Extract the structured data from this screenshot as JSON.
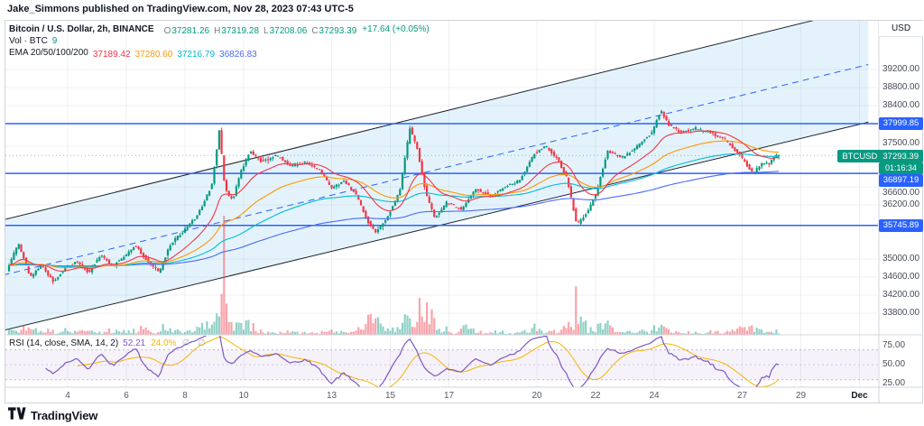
{
  "attribution": {
    "text": "Jake_Simmons published on TradingView.com, Nov 28, 2023 07:43 UTC-5"
  },
  "legend": {
    "title": "Bitcoin / U.S. Dollar, 2h, BINANCE",
    "ohlc": [
      {
        "k": "O",
        "v": "37281.26"
      },
      {
        "k": "H",
        "v": "37319.28"
      },
      {
        "k": "L",
        "v": "37208.06"
      },
      {
        "k": "C",
        "v": "37293.39"
      }
    ],
    "change": "+17.64 (+0.05%)",
    "vol_label": "Vol · BTC",
    "vol_value": "9",
    "ema_label": "EMA 20/50/100/200",
    "ema_values": [
      "37189.42",
      "37280.60",
      "37216.79",
      "36826.83"
    ]
  },
  "rsi_legend": {
    "title": "RSI (14, close, SMA, 14, 2)",
    "value": "52.21",
    "value2": "24.0%",
    "empties": "∅ ∅"
  },
  "price_scale": {
    "currency": "USD",
    "ticks": [
      "39200.00",
      "38800.00",
      "38400.00",
      "37500.00",
      "36600.00",
      "36200.00",
      "35000.00",
      "34600.00",
      "34200.00",
      "33800.00"
    ],
    "level_badges": [
      "37999.85",
      "36897.19",
      "35745.89"
    ],
    "last_badge": {
      "symbol": "BTCUSD",
      "price": "37293.39",
      "countdown": "01:16:34"
    }
  },
  "rsi_scale": {
    "ticks": [
      "75.00",
      "50.00",
      "25.00"
    ]
  },
  "time_axis": {
    "labels": [
      {
        "t": 4,
        "label": "4"
      },
      {
        "t": 6,
        "label": "6"
      },
      {
        "t": 8,
        "label": "8"
      },
      {
        "t": 10,
        "label": "10"
      },
      {
        "t": 13,
        "label": "13"
      },
      {
        "t": 15,
        "label": "15"
      },
      {
        "t": 17,
        "label": "17"
      },
      {
        "t": 20,
        "label": "20"
      },
      {
        "t": 22,
        "label": "22"
      },
      {
        "t": 24,
        "label": "24"
      },
      {
        "t": 27,
        "label": "27"
      },
      {
        "t": 29,
        "label": "29"
      },
      {
        "t": 31,
        "label": "Dec"
      }
    ]
  },
  "footer": {
    "brand": "TradingView"
  },
  "colors": {
    "up": "#089981",
    "down": "#f23645",
    "level_line": "#2962ff",
    "badge_blue": "#2962ff",
    "badge_green": "#089981",
    "channel_line": "#1e222d",
    "channel_fill": "rgba(90,180,230,0.16)",
    "median_line": "#2962ff",
    "ema20": "#f23645",
    "ema50": "#ff9800",
    "ema100": "#00bcd4",
    "ema200": "#4a6cf7",
    "rsi": "#7e57c2",
    "rsi_ma": "#f7b500",
    "grid": "rgba(42,46,57,0.07)",
    "frame": "#d1d4dc"
  },
  "chart_data": {
    "type": "candlestick",
    "symbol": "BTCUSD",
    "name": "Bitcoin / U.S. Dollar",
    "exchange": "BINANCE",
    "interval": "2h",
    "quote_currency": "USD",
    "current_bar": {
      "open": 37281.26,
      "high": 37319.28,
      "low": 37208.06,
      "close": 37293.39,
      "change": 17.64,
      "change_pct": 0.05
    },
    "indicator_values": {
      "ema20": 37189.42,
      "ema50": 37280.6,
      "ema100": 37216.79,
      "ema200": 36826.83,
      "rsi": 52.21,
      "rsi_ma_pct": "24.0%"
    },
    "horizontal_levels": [
      37999.85,
      36897.19,
      35745.89
    ],
    "last_price": 37293.39,
    "bar_countdown": "01:16:34",
    "visible_price_ticks": [
      39200,
      38800,
      38400,
      37500,
      36600,
      36200,
      35000,
      34600,
      34200,
      33800
    ],
    "rsi_ticks": [
      75,
      50,
      25
    ],
    "time_ticks_nov_days": [
      4,
      6,
      8,
      10,
      13,
      15,
      17,
      20,
      22,
      24,
      27,
      29,
      31
    ],
    "time_domain_nov_days": [
      2.0,
      31.2
    ],
    "candle_interval_days": 0.0833333,
    "trend_channel": {
      "upper_start": [
        2,
        35900
      ],
      "upper_end": [
        29.5,
        40300
      ],
      "lower_start": [
        2,
        33450
      ],
      "lower_end": [
        29.5,
        37750
      ],
      "median_dashed": true
    },
    "price_path_anchors": [
      [
        2,
        34750
      ],
      [
        2.4,
        35350
      ],
      [
        2.8,
        34600
      ],
      [
        3.2,
        34850
      ],
      [
        3.6,
        34500
      ],
      [
        4,
        34800
      ],
      [
        4.4,
        34950
      ],
      [
        4.8,
        34700
      ],
      [
        5.2,
        35100
      ],
      [
        5.6,
        34850
      ],
      [
        6,
        35050
      ],
      [
        6.4,
        35300
      ],
      [
        6.8,
        34950
      ],
      [
        7.2,
        34700
      ],
      [
        7.6,
        35350
      ],
      [
        8,
        35600
      ],
      [
        8.5,
        35950
      ],
      [
        9,
        36650
      ],
      [
        9.25,
        37850
      ],
      [
        9.45,
        36550
      ],
      [
        9.7,
        36300
      ],
      [
        10,
        36950
      ],
      [
        10.3,
        37400
      ],
      [
        10.7,
        37150
      ],
      [
        11.2,
        37300
      ],
      [
        11.7,
        37050
      ],
      [
        12.2,
        37150
      ],
      [
        12.7,
        36950
      ],
      [
        13.1,
        36550
      ],
      [
        13.5,
        36750
      ],
      [
        13.9,
        36450
      ],
      [
        14.3,
        35850
      ],
      [
        14.6,
        35600
      ],
      [
        15,
        35950
      ],
      [
        15.4,
        36500
      ],
      [
        15.75,
        37900
      ],
      [
        16,
        37450
      ],
      [
        16.3,
        36450
      ],
      [
        16.6,
        35900
      ],
      [
        17,
        36250
      ],
      [
        17.5,
        36100
      ],
      [
        18,
        36550
      ],
      [
        18.5,
        36400
      ],
      [
        19,
        36600
      ],
      [
        19.5,
        36750
      ],
      [
        20,
        37350
      ],
      [
        20.4,
        37500
      ],
      [
        20.8,
        37200
      ],
      [
        21.1,
        36800
      ],
      [
        21.45,
        35750
      ],
      [
        21.8,
        36050
      ],
      [
        22.1,
        36450
      ],
      [
        22.5,
        37400
      ],
      [
        23,
        37250
      ],
      [
        23.5,
        37500
      ],
      [
        24,
        37800
      ],
      [
        24.3,
        38300
      ],
      [
        24.6,
        37950
      ],
      [
        25,
        37800
      ],
      [
        25.5,
        37900
      ],
      [
        26,
        37800
      ],
      [
        26.5,
        37650
      ],
      [
        27,
        37300
      ],
      [
        27.45,
        36900
      ],
      [
        27.8,
        37150
      ],
      [
        28,
        37100
      ],
      [
        28.2,
        37280
      ],
      [
        28.34,
        37293.39
      ]
    ],
    "volume_spikes": [
      [
        8.4,
        9.0,
        1.8
      ],
      [
        9.2,
        9.6,
        5
      ],
      [
        10.0,
        10.4,
        1.8
      ],
      [
        13.0,
        13.4,
        1.6
      ],
      [
        14.2,
        14.8,
        3
      ],
      [
        15.6,
        16.0,
        2.5
      ],
      [
        16.2,
        16.7,
        2.5
      ],
      [
        17.4,
        17.8,
        1.5
      ],
      [
        19.8,
        20.2,
        1.5
      ],
      [
        21.3,
        21.7,
        3
      ],
      [
        22.4,
        22.7,
        2
      ],
      [
        24.2,
        24.6,
        2
      ],
      [
        26.9,
        27.6,
        1.5
      ]
    ]
  }
}
